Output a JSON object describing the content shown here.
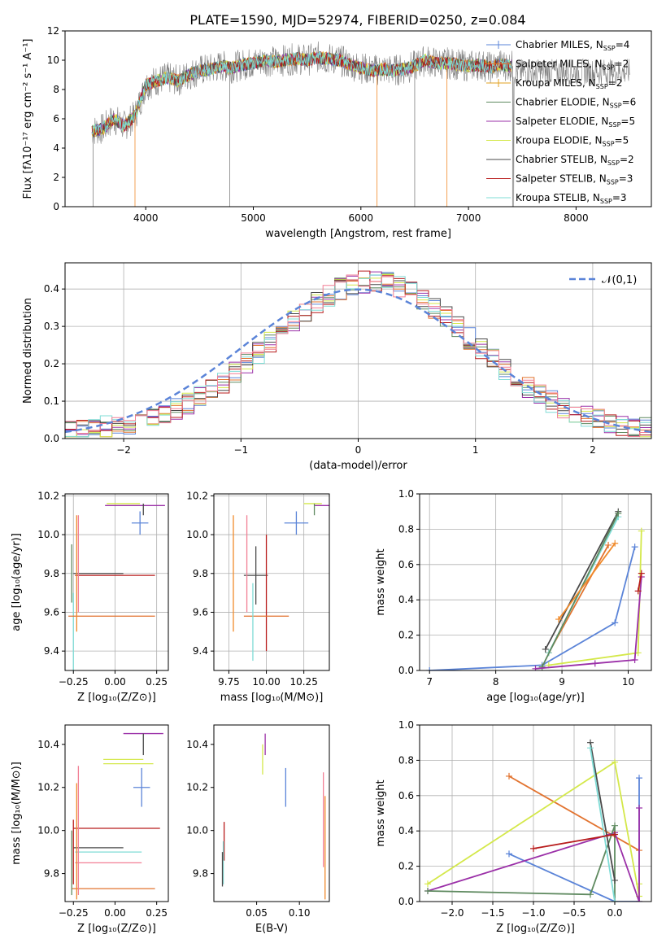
{
  "figure_title": "PLATE=1590, MJD=52974, FIBERID=0250, z=0.084",
  "colors": {
    "Chabrier MILES": "#5b84d8",
    "Salpeter MILES": "#e2732f",
    "Kroupa MILES": "#e0a020",
    "Chabrier ELODIE": "#5f8a60",
    "Salpeter ELODIE": "#9b30a8",
    "Kroupa ELODIE": "#d4e84a",
    "Chabrier STELIB": "#4a4a4a",
    "Salpeter STELIB": "#b81c1c",
    "Kroupa STELIB": "#7fdcd6",
    "extra_pink": "#f27f95",
    "extra_orange": "#f08a2a",
    "normal_curve": "#5b84d8"
  },
  "chart_data": [
    {
      "id": "spectrum",
      "type": "line",
      "title": "PLATE=1590, MJD=52974, FIBERID=0250, z=0.084",
      "xlabel": "wavelength [Angstrom, rest frame]",
      "ylabel": "Flux [fλ10⁻¹⁷ erg cm⁻² s⁻¹ A⁻¹]",
      "xlim": [
        3250,
        8700
      ],
      "ylim": [
        0,
        12
      ],
      "xticks": [
        "4000",
        "5000",
        "6000",
        "7000",
        "8000"
      ],
      "yticks": [
        "0",
        "2",
        "4",
        "6",
        "8",
        "10",
        "12"
      ],
      "legend_position": "top-right",
      "legend": [
        {
          "name": "Chabrier MILES",
          "nssp": "4"
        },
        {
          "name": "Salpeter MILES",
          "nssp": "2"
        },
        {
          "name": "Kroupa MILES",
          "nssp": "2"
        },
        {
          "name": "Chabrier ELODIE",
          "nssp": "6"
        },
        {
          "name": "Salpeter ELODIE",
          "nssp": "5"
        },
        {
          "name": "Kroupa ELODIE",
          "nssp": "5"
        },
        {
          "name": "Chabrier STELIB",
          "nssp": "2"
        },
        {
          "name": "Salpeter STELIB",
          "nssp": "3"
        },
        {
          "name": "Kroupa STELIB",
          "nssp": "3"
        }
      ],
      "envelope": {
        "x": [
          3500,
          3600,
          3700,
          3800,
          3900,
          4000,
          4100,
          4200,
          4300,
          4400,
          4500,
          4600,
          4700,
          4800,
          4900,
          5000,
          5100,
          5200,
          5300,
          5400,
          5500,
          5600,
          5700,
          5800,
          5900,
          6000,
          6100,
          6200,
          6300,
          6400,
          6500,
          6600,
          6700,
          6800,
          6900,
          7000,
          7100,
          7200,
          7300,
          7400
        ],
        "y": [
          5.2,
          5.3,
          6.0,
          5.5,
          6.2,
          8.3,
          8.6,
          8.8,
          8.6,
          9.0,
          9.3,
          9.4,
          9.6,
          9.5,
          9.7,
          9.8,
          10.0,
          9.9,
          10.0,
          10.1,
          10.0,
          10.2,
          10.1,
          10.0,
          9.7,
          9.5,
          9.3,
          9.4,
          9.3,
          9.4,
          9.6,
          10.0,
          9.8,
          9.8,
          9.7,
          9.6,
          9.7,
          9.5,
          9.7,
          9.6
        ]
      },
      "sharp_drops_x": [
        3510,
        3900,
        4780,
        6150,
        6500,
        6800,
        7410
      ]
    },
    {
      "id": "residual-histogram",
      "type": "histogram",
      "xlabel": "(data-model)/error",
      "ylabel": "Normed distribution",
      "xlim": [
        -2.5,
        2.5
      ],
      "ylim": [
        0,
        0.47
      ],
      "xticks": [
        "−2",
        "−1",
        "0",
        "1",
        "2"
      ],
      "yticks": [
        "0.0",
        "0.1",
        "0.2",
        "0.3",
        "0.4"
      ],
      "grid": true,
      "legend_position": "top-right",
      "normal_label": "𝒩(0,1)",
      "bin_width": 0.1,
      "bin_start": -2.5
    },
    {
      "id": "age-vs-Z",
      "type": "errorbar",
      "xlabel": "Z [log₁₀(Z/Z⊙)]",
      "ylabel": "age  [log₁₀(age/yr)]",
      "xlim": [
        -0.3,
        0.32
      ],
      "ylim": [
        9.3,
        10.21
      ],
      "xticks": [
        "−0.25",
        "0.00",
        "0.25"
      ],
      "yticks": [
        "9.4",
        "9.6",
        "9.8",
        "10.0",
        "10.2"
      ],
      "grid": true,
      "points": [
        {
          "series": "Chabrier MILES",
          "x": 0.15,
          "y": 10.06,
          "xerr": 0.05,
          "yerr": 0.06
        },
        {
          "series": "Salpeter ELODIE",
          "x": 0.12,
          "y": 10.15,
          "xerr": 0.18,
          "yerr": 0.0
        },
        {
          "series": "Kroupa ELODIE",
          "x": 0.05,
          "y": 10.16,
          "xerr": 0.1,
          "yerr": 0.0
        },
        {
          "series": "Chabrier STELIB",
          "x": 0.17,
          "y": 10.13,
          "xerr": 0.0,
          "yerr": 0.03
        },
        {
          "series": "Chabrier STELIB",
          "x": -0.1,
          "y": 9.8,
          "xerr": 0.15,
          "yerr": 0.0
        },
        {
          "series": "Salpeter STELIB",
          "x": 0.0,
          "y": 9.79,
          "xerr": 0.24,
          "yerr": 0.0
        },
        {
          "series": "Chabrier ELODIE",
          "x": -0.26,
          "y": 9.8,
          "xerr": 0.0,
          "yerr": 0.15
        },
        {
          "series": "Kroupa STELIB",
          "x": -0.25,
          "y": 9.5,
          "xerr": 0.0,
          "yerr": 0.2
        },
        {
          "series": "Salpeter MILES",
          "x": -0.02,
          "y": 9.58,
          "xerr": 0.26,
          "yerr": 0.0
        },
        {
          "series": "extra_pink",
          "x": -0.22,
          "y": 9.85,
          "xerr": 0.0,
          "yerr": 0.25
        },
        {
          "series": "extra_orange",
          "x": -0.23,
          "y": 9.8,
          "xerr": 0.0,
          "yerr": 0.3
        }
      ]
    },
    {
      "id": "age-vs-mass",
      "type": "errorbar",
      "xlabel": "mass [log₁₀(M/M⊙)]",
      "xlim": [
        9.65,
        10.42
      ],
      "ylim": [
        9.3,
        10.21
      ],
      "xticks": [
        "9.75",
        "10.00",
        "10.25"
      ],
      "yticks": [
        "9.4",
        "9.6",
        "9.8",
        "10.0",
        "10.2"
      ],
      "grid": true,
      "points": [
        {
          "series": "Chabrier MILES",
          "x": 10.2,
          "y": 10.06,
          "xerr": 0.08,
          "yerr": 0.06
        },
        {
          "series": "Salpeter ELODIE",
          "x": 10.37,
          "y": 10.15,
          "xerr": 0.05,
          "yerr": 0.0
        },
        {
          "series": "Kroupa ELODIE",
          "x": 10.31,
          "y": 10.16,
          "xerr": 0.06,
          "yerr": 0.0
        },
        {
          "series": "Chabrier ELODIE",
          "x": 10.32,
          "y": 10.13,
          "xerr": 0.0,
          "yerr": 0.03
        },
        {
          "series": "Chabrier STELIB",
          "x": 9.93,
          "y": 9.79,
          "xerr": 0.08,
          "yerr": 0.15
        },
        {
          "series": "Salpeter STELIB",
          "x": 10.0,
          "y": 9.7,
          "xerr": 0.0,
          "yerr": 0.3
        },
        {
          "series": "Salpeter MILES",
          "x": 10.0,
          "y": 9.58,
          "xerr": 0.15,
          "yerr": 0.0
        },
        {
          "series": "extra_orange",
          "x": 9.78,
          "y": 9.8,
          "xerr": 0.0,
          "yerr": 0.3
        },
        {
          "series": "extra_pink",
          "x": 9.87,
          "y": 9.85,
          "xerr": 0.0,
          "yerr": 0.25
        },
        {
          "series": "Kroupa STELIB",
          "x": 9.91,
          "y": 9.55,
          "xerr": 0.0,
          "yerr": 0.2
        }
      ]
    },
    {
      "id": "massweight-vs-age",
      "type": "line",
      "xlabel": "age  [log₁₀(age/yr)]",
      "ylabel": "mass weight",
      "xlim": [
        6.85,
        10.35
      ],
      "ylim": [
        0,
        1
      ],
      "xticks": [
        "7",
        "8",
        "9",
        "10"
      ],
      "yticks": [
        "0.0",
        "0.2",
        "0.4",
        "0.6",
        "0.8",
        "1.0"
      ],
      "grid": true,
      "series": [
        {
          "name": "Chabrier MILES",
          "x": [
            7.0,
            8.7,
            9.8,
            10.1
          ],
          "y": [
            0.0,
            0.03,
            0.27,
            0.7
          ]
        },
        {
          "name": "Salpeter MILES",
          "x": [
            8.8,
            9.7
          ],
          "y": [
            0.1,
            0.71
          ]
        },
        {
          "name": "Chabrier STELIB",
          "x": [
            8.75,
            9.85
          ],
          "y": [
            0.12,
            0.9
          ]
        },
        {
          "name": "Kroupa STELIB",
          "x": [
            8.8,
            9.85
          ],
          "y": [
            0.1,
            0.87
          ]
        },
        {
          "name": "Chabrier ELODIE",
          "x": [
            8.7,
            9.85
          ],
          "y": [
            0.02,
            0.89
          ]
        },
        {
          "name": "Kroupa ELODIE",
          "x": [
            8.8,
            10.15,
            10.2
          ],
          "y": [
            0.03,
            0.1,
            0.79
          ]
        },
        {
          "name": "Salpeter ELODIE",
          "x": [
            8.6,
            9.5,
            10.1,
            10.2
          ],
          "y": [
            0.01,
            0.04,
            0.06,
            0.53
          ]
        },
        {
          "name": "Salpeter STELIB",
          "x": [
            10.15,
            10.2
          ],
          "y": [
            0.45,
            0.55
          ]
        },
        {
          "name": "extra_orange",
          "x": [
            8.95,
            9.8
          ],
          "y": [
            0.29,
            0.72
          ]
        }
      ]
    },
    {
      "id": "mass-vs-Z",
      "type": "errorbar",
      "xlabel": "Z [log₁₀(Z/Z⊙)]",
      "ylabel": "mass [log₁₀(M/M⊙)]",
      "xlim": [
        -0.3,
        0.32
      ],
      "ylim": [
        9.67,
        10.49
      ],
      "xticks": [
        "−0.25",
        "0.00",
        "0.25"
      ],
      "yticks": [
        "9.8",
        "10.0",
        "10.2",
        "10.4"
      ],
      "points": [
        {
          "series": "Salpeter ELODIE",
          "x": 0.17,
          "y": 10.45,
          "xerr": 0.12,
          "yerr": 0.0
        },
        {
          "series": "Chabrier STELIB",
          "x": 0.17,
          "y": 10.4,
          "xerr": 0.0,
          "yerr": 0.05
        },
        {
          "series": "Kroupa ELODIE",
          "x": 0.05,
          "y": 10.33,
          "xerr": 0.12,
          "yerr": 0.0
        },
        {
          "series": "Kroupa ELODIE",
          "x": 0.08,
          "y": 10.31,
          "xerr": 0.15,
          "yerr": 0.0
        },
        {
          "series": "Chabrier MILES",
          "x": 0.16,
          "y": 10.2,
          "xerr": 0.05,
          "yerr": 0.09
        },
        {
          "series": "Salpeter STELIB",
          "x": 0.01,
          "y": 10.01,
          "xerr": 0.26,
          "yerr": 0.0
        },
        {
          "series": "Chabrier STELIB",
          "x": -0.1,
          "y": 9.92,
          "xerr": 0.15,
          "yerr": 0.0
        },
        {
          "series": "Kroupa STELIB",
          "x": -0.04,
          "y": 9.9,
          "xerr": 0.2,
          "yerr": 0.0
        },
        {
          "series": "extra_pink",
          "x": -0.04,
          "y": 9.85,
          "xerr": 0.2,
          "yerr": 0.0
        },
        {
          "series": "Salpeter MILES",
          "x": -0.01,
          "y": 9.73,
          "xerr": 0.25,
          "yerr": 0.0
        },
        {
          "series": "extra_pink",
          "x": -0.22,
          "y": 10.0,
          "xerr": 0.0,
          "yerr": 0.3
        },
        {
          "series": "extra_orange",
          "x": -0.23,
          "y": 9.95,
          "xerr": 0.0,
          "yerr": 0.27
        },
        {
          "series": "Chabrier ELODIE",
          "x": -0.26,
          "y": 9.85,
          "xerr": 0.0,
          "yerr": 0.15
        },
        {
          "series": "Salpeter STELIB",
          "x": -0.25,
          "y": 9.9,
          "xerr": 0.0,
          "yerr": 0.15
        }
      ]
    },
    {
      "id": "mass-vs-EBV",
      "type": "errorbar",
      "xlabel": "E(B-V)",
      "xlim": [
        0.0,
        0.135
      ],
      "ylim": [
        9.67,
        10.49
      ],
      "xticks": [
        "0.05",
        "0.10"
      ],
      "yticks": [
        "9.8",
        "10.0",
        "10.2",
        "10.4"
      ],
      "points": [
        {
          "series": "Salpeter ELODIE",
          "x": 0.06,
          "y": 10.4,
          "xerr": 0.0,
          "yerr": 0.05
        },
        {
          "series": "Kroupa ELODIE",
          "x": 0.057,
          "y": 10.33,
          "xerr": 0.0,
          "yerr": 0.07
        },
        {
          "series": "Chabrier MILES",
          "x": 0.084,
          "y": 10.2,
          "xerr": 0.0,
          "yerr": 0.09
        },
        {
          "series": "Salpeter STELIB",
          "x": 0.012,
          "y": 9.95,
          "xerr": 0.0,
          "yerr": 0.09
        },
        {
          "series": "Kroupa STELIB",
          "x": 0.011,
          "y": 9.85,
          "xerr": 0.0,
          "yerr": 0.1
        },
        {
          "series": "Chabrier STELIB",
          "x": 0.01,
          "y": 9.82,
          "xerr": 0.0,
          "yerr": 0.08
        },
        {
          "series": "extra_pink",
          "x": 0.128,
          "y": 10.05,
          "xerr": 0.0,
          "yerr": 0.22
        },
        {
          "series": "extra_orange",
          "x": 0.13,
          "y": 9.92,
          "xerr": 0.0,
          "yerr": 0.24
        }
      ]
    },
    {
      "id": "massweight-vs-Z",
      "type": "line",
      "xlabel": "Z [log₁₀(Z/Z⊙)]",
      "ylabel": "mass weight",
      "xlim": [
        -2.4,
        0.45
      ],
      "ylim": [
        0,
        1
      ],
      "xticks": [
        "−2.0",
        "−1.5",
        "−1.0",
        "−0.5",
        "0.0"
      ],
      "yticks": [
        "0.0",
        "0.2",
        "0.4",
        "0.6",
        "0.8",
        "1.0"
      ],
      "grid": true,
      "series": [
        {
          "name": "Chabrier MILES",
          "x": [
            -1.3,
            0.0,
            0.3,
            0.3
          ],
          "y": [
            0.27,
            0.0,
            0.0,
            0.7
          ]
        },
        {
          "name": "Salpeter MILES",
          "x": [
            -1.3,
            0.3
          ],
          "y": [
            0.71,
            0.29
          ]
        },
        {
          "name": "Kroupa ELODIE",
          "x": [
            -2.3,
            0.0,
            0.3,
            0.3
          ],
          "y": [
            0.1,
            0.79,
            0.03,
            0.1
          ]
        },
        {
          "name": "Salpeter ELODIE",
          "x": [
            -2.3,
            0.0,
            0.3,
            0.3
          ],
          "y": [
            0.06,
            0.39,
            0.0,
            0.53
          ]
        },
        {
          "name": "Chabrier ELODIE",
          "x": [
            -2.3,
            -0.3,
            0.0,
            0.0
          ],
          "y": [
            0.06,
            0.04,
            0.43,
            0.0
          ]
        },
        {
          "name": "Chabrier STELIB",
          "x": [
            -0.3,
            0.0
          ],
          "y": [
            0.9,
            0.12
          ]
        },
        {
          "name": "Kroupa STELIB",
          "x": [
            -0.3,
            0.0
          ],
          "y": [
            0.87,
            0.0
          ]
        },
        {
          "name": "Salpeter STELIB",
          "x": [
            -1.0,
            0.0
          ],
          "y": [
            0.3,
            0.38
          ]
        }
      ]
    }
  ]
}
